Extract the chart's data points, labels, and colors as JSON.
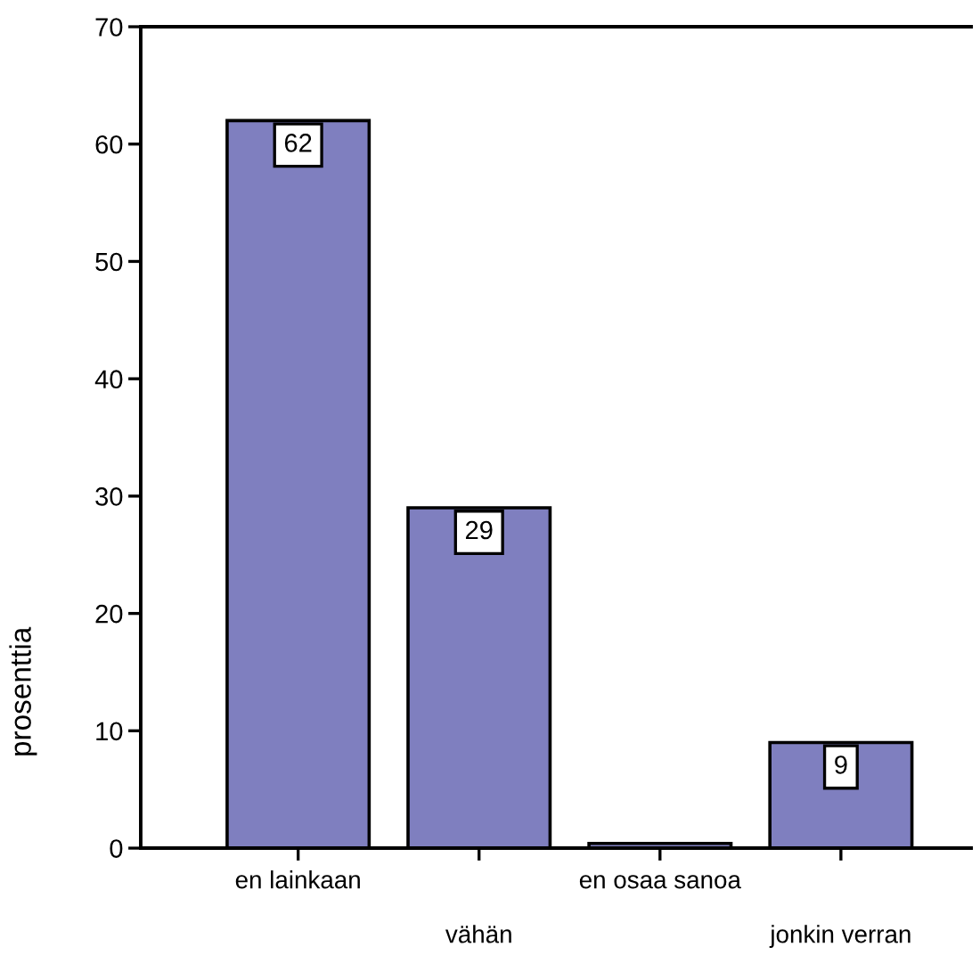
{
  "chart_data": {
    "type": "bar",
    "ylabel": "prosenttia",
    "categories": [
      "en lainkaan",
      "vähän",
      "en osaa sanoa",
      "jonkin verran"
    ],
    "values": [
      62,
      29,
      0.4,
      9
    ],
    "value_labels": [
      "62",
      "29",
      null,
      "9"
    ],
    "color": "#7f7fbf",
    "ylim": [
      0,
      70
    ],
    "yticks": [
      0,
      10,
      20,
      30,
      40,
      50,
      60,
      70
    ]
  }
}
